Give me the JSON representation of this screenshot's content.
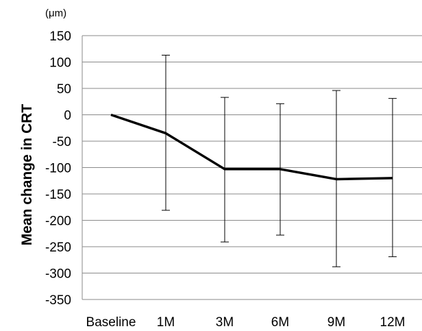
{
  "chart_data": {
    "type": "line",
    "ylabel": "Mean change in CRT",
    "yunit": "(μm)",
    "ylim": [
      -350,
      150
    ],
    "ytick_step": 50,
    "grid": true,
    "categories": [
      "Baseline",
      "1M",
      "3M",
      "6M",
      "9M",
      "12M"
    ],
    "series": [
      {
        "values": [
          0,
          -35,
          -103,
          -103,
          -122,
          -120
        ],
        "error_upper": [
          null,
          113,
          33,
          21,
          46,
          31
        ],
        "error_lower": [
          null,
          -181,
          -241,
          -228,
          -288,
          -269
        ]
      }
    ]
  }
}
